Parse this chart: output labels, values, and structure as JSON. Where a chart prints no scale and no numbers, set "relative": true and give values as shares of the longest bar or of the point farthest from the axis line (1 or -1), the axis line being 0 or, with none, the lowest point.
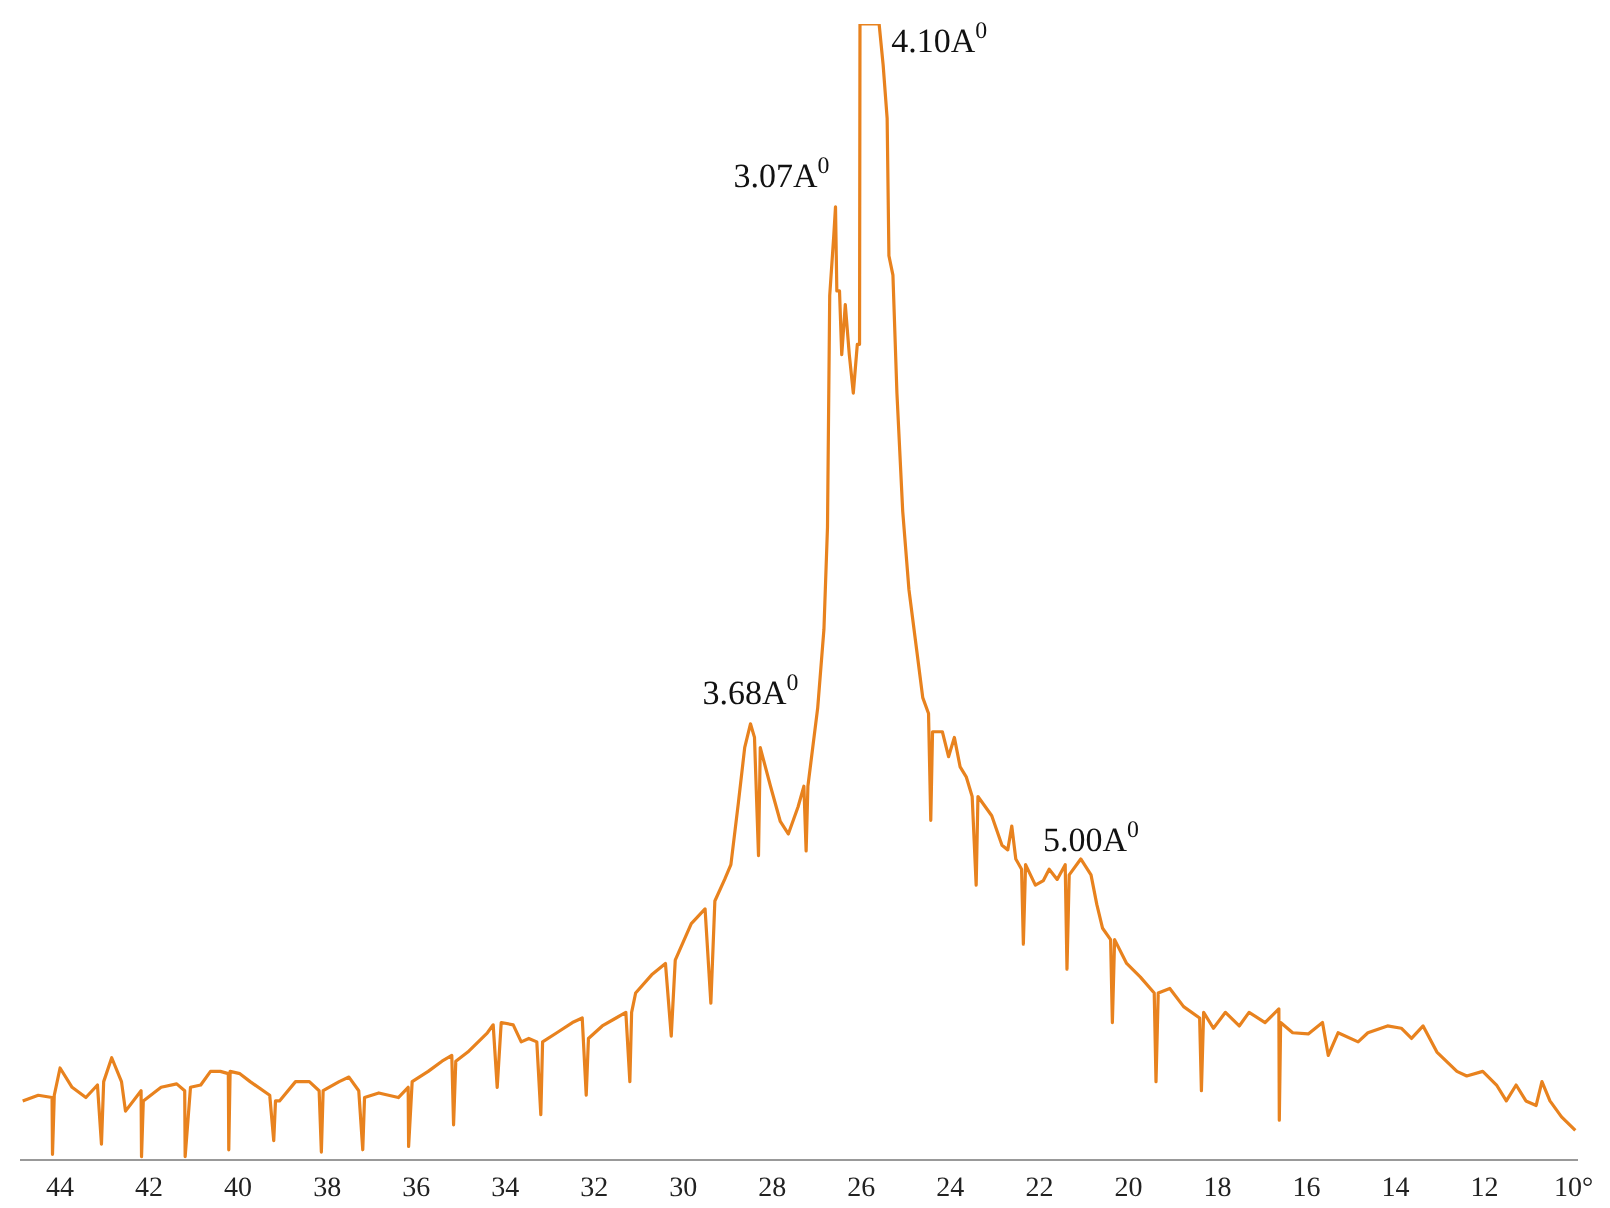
{
  "chart_data": {
    "type": "line",
    "relative": true,
    "xlim": [
      44.9,
      9.9
    ],
    "xticks": [
      44,
      42,
      40,
      38,
      36,
      34,
      32,
      30,
      28,
      26,
      24,
      22,
      20,
      18,
      16,
      14,
      12,
      {
        "value": 10,
        "label": "10°"
      }
    ],
    "marker": "none",
    "line_style": "solid",
    "series": [
      {
        "color": "#e8821e",
        "x": [
          44.84,
          44.49,
          44.18,
          44.17,
          44.13,
          44.0,
          43.73,
          43.42,
          43.16,
          43.07,
          43.02,
          42.84,
          42.62,
          42.53,
          42.18,
          42.17,
          42.13,
          41.73,
          41.38,
          41.2,
          41.19,
          41.07,
          40.84,
          40.62,
          40.4,
          40.22,
          40.21,
          40.18,
          39.96,
          39.73,
          39.29,
          39.2,
          39.16,
          39.07,
          38.71,
          38.4,
          38.18,
          38.13,
          38.09,
          37.73,
          37.51,
          37.29,
          37.2,
          37.16,
          36.84,
          36.4,
          36.18,
          36.17,
          36.09,
          35.73,
          35.42,
          35.2,
          35.16,
          35.11,
          34.84,
          34.4,
          34.27,
          34.18,
          34.09,
          33.82,
          33.64,
          33.47,
          33.29,
          33.2,
          33.16,
          32.84,
          32.49,
          32.27,
          32.18,
          32.13,
          31.82,
          31.51,
          31.29,
          31.2,
          31.16,
          31.07,
          30.71,
          30.4,
          30.27,
          30.18,
          29.82,
          29.51,
          29.38,
          29.29,
          29.07,
          28.93,
          28.76,
          28.62,
          28.49,
          28.4,
          28.31,
          28.27,
          28.04,
          27.82,
          27.64,
          27.42,
          27.29,
          27.24,
          27.2,
          26.98,
          26.84,
          26.76,
          26.71,
          26.62,
          26.58,
          26.55,
          26.49,
          26.44,
          26.36,
          26.27,
          26.18,
          26.09,
          26.04,
          26.03,
          25.6,
          25.51,
          25.42,
          25.38,
          25.29,
          25.2,
          25.07,
          24.93,
          24.76,
          24.62,
          24.49,
          24.44,
          24.4,
          24.18,
          24.04,
          23.91,
          23.78,
          23.64,
          23.51,
          23.42,
          23.38,
          23.07,
          22.84,
          22.71,
          22.62,
          22.53,
          22.4,
          22.36,
          22.31,
          22.09,
          21.91,
          21.78,
          21.6,
          21.42,
          21.38,
          21.33,
          21.07,
          20.84,
          20.71,
          20.58,
          20.4,
          20.36,
          20.31,
          20.04,
          19.73,
          19.42,
          19.38,
          19.33,
          19.07,
          18.76,
          18.4,
          18.36,
          18.31,
          18.09,
          17.82,
          17.51,
          17.29,
          16.93,
          16.62,
          16.61,
          16.58,
          16.31,
          15.96,
          15.64,
          15.51,
          15.29,
          14.84,
          14.62,
          14.18,
          13.87,
          13.64,
          13.38,
          13.07,
          12.62,
          12.4,
          12.04,
          11.73,
          11.51,
          11.29,
          11.07,
          10.84,
          10.71,
          10.53,
          10.27,
          9.96
        ],
        "values": [
          0.052,
          0.057,
          0.055,
          0.005,
          0.057,
          0.081,
          0.064,
          0.055,
          0.066,
          0.014,
          0.069,
          0.09,
          0.069,
          0.043,
          0.061,
          0.003,
          0.052,
          0.064,
          0.067,
          0.061,
          0.003,
          0.064,
          0.066,
          0.078,
          0.078,
          0.076,
          0.009,
          0.078,
          0.076,
          0.069,
          0.057,
          0.017,
          0.052,
          0.052,
          0.069,
          0.069,
          0.061,
          0.007,
          0.061,
          0.069,
          0.073,
          0.061,
          0.009,
          0.055,
          0.059,
          0.055,
          0.064,
          0.012,
          0.069,
          0.078,
          0.087,
          0.092,
          0.031,
          0.087,
          0.095,
          0.112,
          0.119,
          0.064,
          0.121,
          0.119,
          0.104,
          0.107,
          0.104,
          0.04,
          0.104,
          0.112,
          0.121,
          0.125,
          0.057,
          0.107,
          0.118,
          0.125,
          0.13,
          0.069,
          0.13,
          0.147,
          0.163,
          0.173,
          0.109,
          0.176,
          0.208,
          0.221,
          0.138,
          0.228,
          0.247,
          0.26,
          0.315,
          0.363,
          0.384,
          0.372,
          0.268,
          0.363,
          0.329,
          0.298,
          0.287,
          0.311,
          0.329,
          0.272,
          0.329,
          0.398,
          0.467,
          0.557,
          0.761,
          0.813,
          0.839,
          0.765,
          0.765,
          0.709,
          0.753,
          0.709,
          0.675,
          0.718,
          0.718,
          1.0,
          1.0,
          0.964,
          0.917,
          0.796,
          0.779,
          0.675,
          0.571,
          0.502,
          0.45,
          0.407,
          0.393,
          0.299,
          0.377,
          0.377,
          0.355,
          0.372,
          0.346,
          0.337,
          0.32,
          0.242,
          0.32,
          0.303,
          0.277,
          0.273,
          0.294,
          0.265,
          0.256,
          0.19,
          0.26,
          0.242,
          0.246,
          0.256,
          0.247,
          0.26,
          0.168,
          0.251,
          0.265,
          0.251,
          0.225,
          0.204,
          0.194,
          0.121,
          0.194,
          0.173,
          0.161,
          0.147,
          0.069,
          0.147,
          0.151,
          0.135,
          0.125,
          0.061,
          0.13,
          0.116,
          0.13,
          0.118,
          0.13,
          0.121,
          0.133,
          0.035,
          0.121,
          0.112,
          0.111,
          0.121,
          0.092,
          0.112,
          0.104,
          0.112,
          0.118,
          0.116,
          0.107,
          0.118,
          0.095,
          0.078,
          0.074,
          0.078,
          0.066,
          0.052,
          0.066,
          0.052,
          0.048,
          0.069,
          0.052,
          0.038,
          0.026
        ]
      }
    ],
    "annotations": [
      {
        "text": "4.10A$^{0}$",
        "x": 25.6,
        "y": 1.0
      },
      {
        "text": "3.07A$^{0}$",
        "x": 26.58,
        "y": 0.839
      },
      {
        "text": "3.68A$^{0}$",
        "x": 28.49,
        "y": 0.384
      },
      {
        "text": "5.00A$^{0}$",
        "x": 20.84,
        "y": 0.251
      }
    ]
  }
}
